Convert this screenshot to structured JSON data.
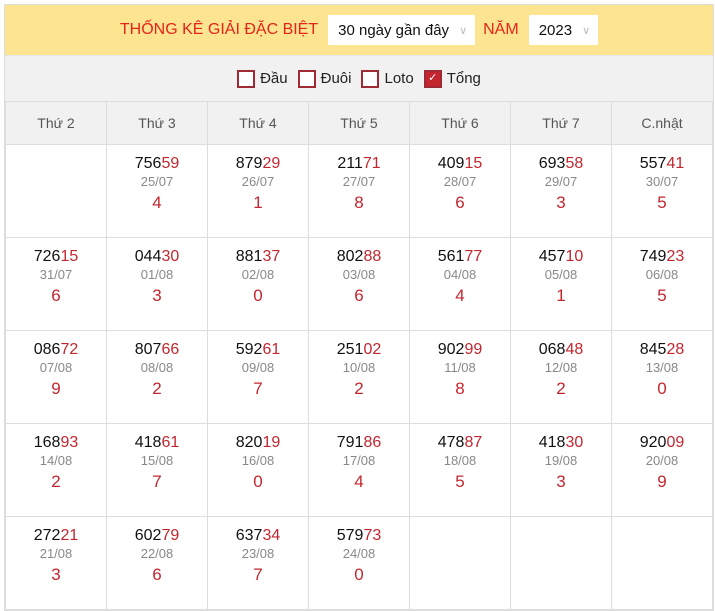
{
  "header": {
    "title": "THỐNG KÊ GIẢI ĐẶC BIỆT",
    "range_select": "30 ngày gần đây",
    "year_label": "NĂM",
    "year_select": "2023"
  },
  "filters": [
    {
      "label": "Đầu",
      "checked": false
    },
    {
      "label": "Đuôi",
      "checked": false
    },
    {
      "label": "Loto",
      "checked": false
    },
    {
      "label": "Tổng",
      "checked": true
    }
  ],
  "columns": [
    "Thứ 2",
    "Thứ 3",
    "Thứ 4",
    "Thứ 5",
    "Thứ 6",
    "Thứ 7",
    "C.nhật"
  ],
  "rows": [
    [
      null,
      {
        "head": "756",
        "tail": "59",
        "date": "25/07",
        "sum": "4"
      },
      {
        "head": "879",
        "tail": "29",
        "date": "26/07",
        "sum": "1"
      },
      {
        "head": "211",
        "tail": "71",
        "date": "27/07",
        "sum": "8"
      },
      {
        "head": "409",
        "tail": "15",
        "date": "28/07",
        "sum": "6"
      },
      {
        "head": "693",
        "tail": "58",
        "date": "29/07",
        "sum": "3"
      },
      {
        "head": "557",
        "tail": "41",
        "date": "30/07",
        "sum": "5"
      }
    ],
    [
      {
        "head": "726",
        "tail": "15",
        "date": "31/07",
        "sum": "6"
      },
      {
        "head": "044",
        "tail": "30",
        "date": "01/08",
        "sum": "3"
      },
      {
        "head": "881",
        "tail": "37",
        "date": "02/08",
        "sum": "0"
      },
      {
        "head": "802",
        "tail": "88",
        "date": "03/08",
        "sum": "6"
      },
      {
        "head": "561",
        "tail": "77",
        "date": "04/08",
        "sum": "4"
      },
      {
        "head": "457",
        "tail": "10",
        "date": "05/08",
        "sum": "1"
      },
      {
        "head": "749",
        "tail": "23",
        "date": "06/08",
        "sum": "5"
      }
    ],
    [
      {
        "head": "086",
        "tail": "72",
        "date": "07/08",
        "sum": "9"
      },
      {
        "head": "807",
        "tail": "66",
        "date": "08/08",
        "sum": "2"
      },
      {
        "head": "592",
        "tail": "61",
        "date": "09/08",
        "sum": "7"
      },
      {
        "head": "251",
        "tail": "02",
        "date": "10/08",
        "sum": "2"
      },
      {
        "head": "902",
        "tail": "99",
        "date": "11/08",
        "sum": "8"
      },
      {
        "head": "068",
        "tail": "48",
        "date": "12/08",
        "sum": "2"
      },
      {
        "head": "845",
        "tail": "28",
        "date": "13/08",
        "sum": "0"
      }
    ],
    [
      {
        "head": "168",
        "tail": "93",
        "date": "14/08",
        "sum": "2"
      },
      {
        "head": "418",
        "tail": "61",
        "date": "15/08",
        "sum": "7"
      },
      {
        "head": "820",
        "tail": "19",
        "date": "16/08",
        "sum": "0"
      },
      {
        "head": "791",
        "tail": "86",
        "date": "17/08",
        "sum": "4"
      },
      {
        "head": "478",
        "tail": "87",
        "date": "18/08",
        "sum": "5"
      },
      {
        "head": "418",
        "tail": "30",
        "date": "19/08",
        "sum": "3"
      },
      {
        "head": "920",
        "tail": "09",
        "date": "20/08",
        "sum": "9"
      }
    ],
    [
      {
        "head": "272",
        "tail": "21",
        "date": "21/08",
        "sum": "3"
      },
      {
        "head": "602",
        "tail": "79",
        "date": "22/08",
        "sum": "6"
      },
      {
        "head": "637",
        "tail": "34",
        "date": "23/08",
        "sum": "7"
      },
      {
        "head": "579",
        "tail": "73",
        "date": "24/08",
        "sum": "0"
      },
      null,
      null,
      null
    ]
  ]
}
